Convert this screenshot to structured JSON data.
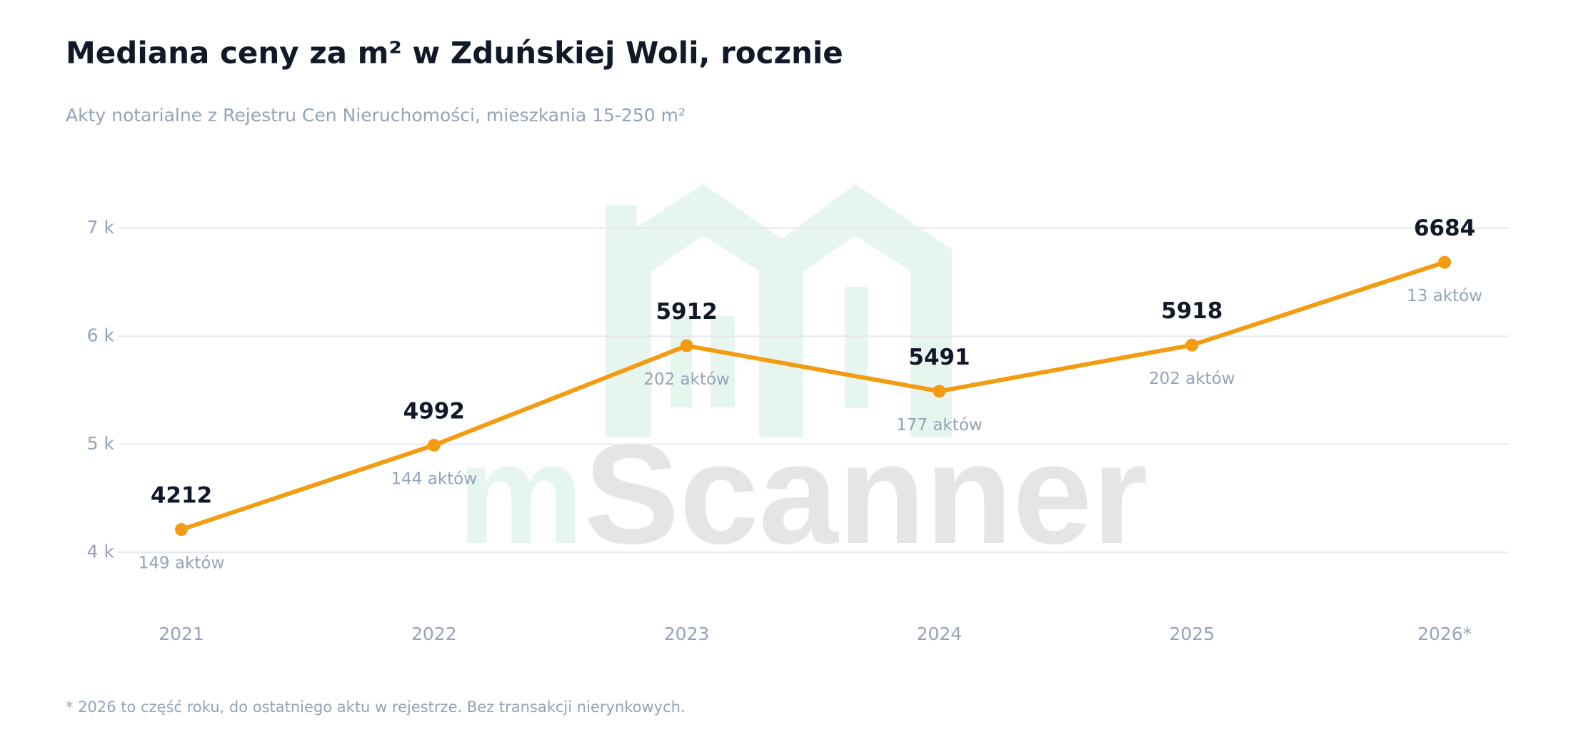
{
  "chart_data": {
    "type": "line",
    "title": "Mediana ceny za m² w Zduńskiej Woli, rocznie",
    "subtitle": "Akty notarialne z Rejestru Cen Nieruchomości, mieszkania 15-250 m²",
    "categories": [
      "2021",
      "2022",
      "2023",
      "2024",
      "2025",
      "2026*"
    ],
    "values": [
      4212,
      4992,
      5912,
      5491,
      5918,
      6684
    ],
    "point_notes": [
      "149 aktów",
      "144 aktów",
      "202 aktów",
      "177 aktów",
      "202 aktów",
      "13 aktów"
    ],
    "color": "#f39c12",
    "ylim": [
      3500,
      7500
    ],
    "yticks": [
      {
        "value": 4000,
        "label": "4 k"
      },
      {
        "value": 5000,
        "label": "5 k"
      },
      {
        "value": 6000,
        "label": "6 k"
      },
      {
        "value": 7000,
        "label": "7 k"
      }
    ],
    "grid": true,
    "footnote": "* 2026 to część roku, do ostatniego aktu w rejestrze. Bez transakcji nierynkowych.",
    "watermark": [
      "m",
      "Scanner"
    ]
  }
}
